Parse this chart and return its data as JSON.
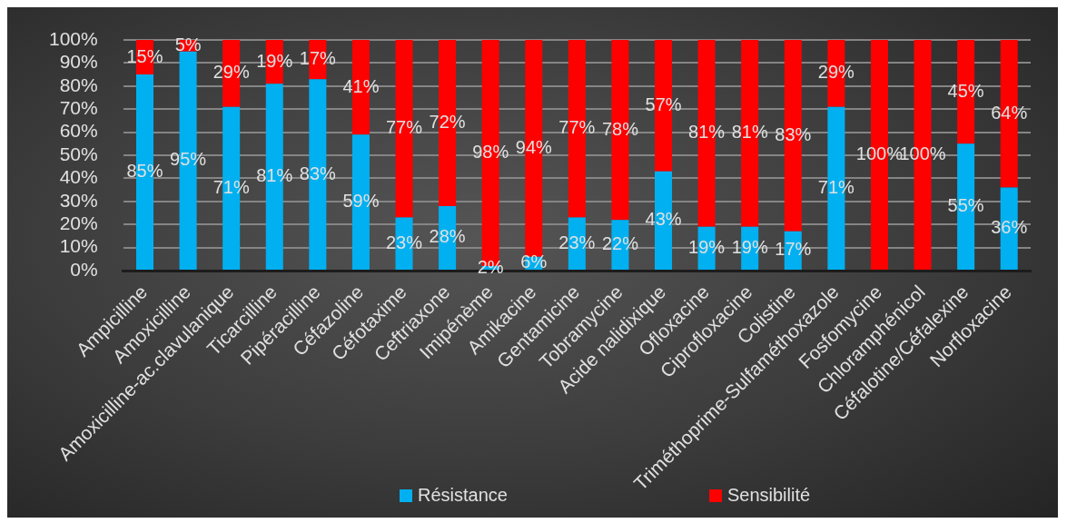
{
  "chart_data": {
    "type": "bar",
    "stacked": true,
    "categories": [
      "Ampicilline",
      "Amoxicilline",
      "Amoxicilline-ac.clavulanique",
      "Ticarcilline",
      "Pipéracilline",
      "Céfazoline",
      "Céfotaxime",
      "Ceftriaxone",
      "Imipénème",
      "Amikacine",
      "Gentamicine",
      "Tobramycine",
      "Acide nalidixique",
      "Ofloxacine",
      "Ciprofloxacine",
      "Colistine",
      "Triméthoprime-Sulfaméthoxazole",
      "Fosfomycine",
      "Chloramphénicol",
      "Céfalotine/Céfalexine",
      "Norfloxacine"
    ],
    "series": [
      {
        "name": "Résistance",
        "color": "#00b0f0",
        "values": [
          85,
          95,
          71,
          81,
          83,
          59,
          23,
          28,
          2,
          6,
          23,
          22,
          43,
          19,
          19,
          17,
          71,
          0,
          0,
          55,
          36
        ],
        "value_labels": [
          "85%",
          "95%",
          "71%",
          "81%",
          "83%",
          "59%",
          "23%",
          "28%",
          "2%",
          "6%",
          "23%",
          "22%",
          "43%",
          "19%",
          "19%",
          "17%",
          "71%",
          null,
          null,
          "55%",
          "36%"
        ]
      },
      {
        "name": "Sensibilité",
        "color": "#ff0000",
        "values": [
          15,
          5,
          29,
          19,
          17,
          41,
          77,
          72,
          98,
          94,
          77,
          78,
          57,
          81,
          81,
          83,
          29,
          100,
          100,
          45,
          64
        ],
        "value_labels": [
          "15%",
          "5%",
          "29%",
          "19%",
          "17%",
          "41%",
          "77%",
          "72%",
          "98%",
          "94%",
          "77%",
          "78%",
          "57%",
          "81%",
          "81%",
          "83%",
          "29%",
          "100%",
          "100%",
          "45%",
          "64%"
        ]
      }
    ],
    "ylim": [
      0,
      100
    ],
    "yticks": [
      {
        "value": 0,
        "label": "0%"
      },
      {
        "value": 10,
        "label": "10%"
      },
      {
        "value": 20,
        "label": "20%"
      },
      {
        "value": 30,
        "label": "30%"
      },
      {
        "value": 40,
        "label": "40%"
      },
      {
        "value": 50,
        "label": "50%"
      },
      {
        "value": 60,
        "label": "60%"
      },
      {
        "value": 70,
        "label": "70%"
      },
      {
        "value": 80,
        "label": "80%"
      },
      {
        "value": 90,
        "label": "90%"
      },
      {
        "value": 100,
        "label": "100%"
      }
    ],
    "grid": "y",
    "legend": "bottom"
  }
}
